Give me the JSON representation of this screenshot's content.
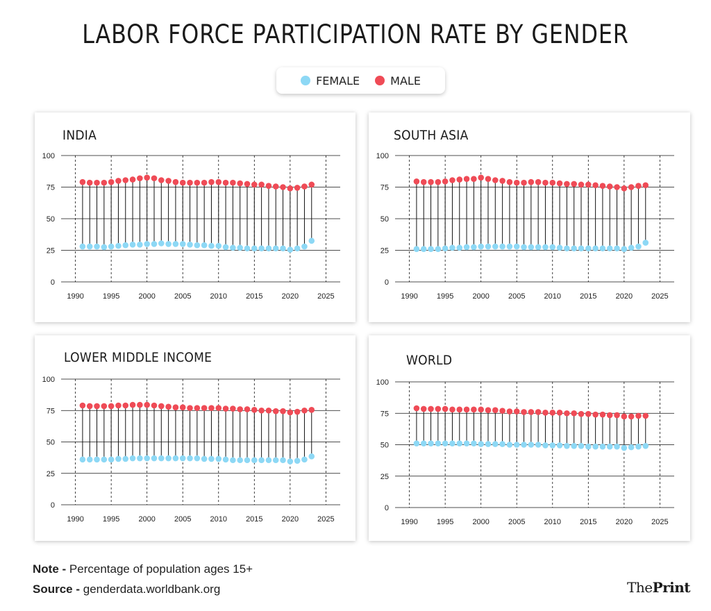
{
  "title": "LABOR FORCE PARTICIPATION RATE BY GENDER",
  "legend": {
    "female_label": "FEMALE",
    "male_label": "MALE"
  },
  "colors": {
    "female": "#8dd8f5",
    "male": "#ef4b56",
    "stem": "#111111",
    "grid": "#111111"
  },
  "footer": {
    "note_label": "Note -",
    "note_text": "Percentage of population ages 15+",
    "source_label": "Source -",
    "source_text": "genderdata.worldbank.org",
    "brand_light": "The",
    "brand_bold": "Print"
  },
  "chart_data": [
    {
      "type": "dumbbell",
      "title": "INDIA",
      "x": [
        1991,
        1992,
        1993,
        1994,
        1995,
        1996,
        1997,
        1998,
        1999,
        2000,
        2001,
        2002,
        2003,
        2004,
        2005,
        2006,
        2007,
        2008,
        2009,
        2010,
        2011,
        2012,
        2013,
        2014,
        2015,
        2016,
        2017,
        2018,
        2019,
        2020,
        2021,
        2022,
        2023
      ],
      "series": [
        {
          "name": "MALE",
          "values": [
            79,
            78.5,
            78.5,
            78.5,
            79,
            80,
            80.5,
            81,
            82,
            82.5,
            82,
            80.5,
            80,
            79,
            78.5,
            78.5,
            78.5,
            78.5,
            79,
            79,
            78.5,
            78.5,
            78,
            77.5,
            77,
            77,
            76,
            75.5,
            75,
            74,
            74.5,
            75.5,
            77
          ]
        },
        {
          "name": "FEMALE",
          "values": [
            28,
            28,
            28,
            27.5,
            28,
            28.5,
            29,
            29.5,
            29.5,
            30,
            30,
            30.5,
            30,
            30,
            30,
            29.5,
            29,
            29,
            28.5,
            28.5,
            27.5,
            27,
            27,
            26.5,
            26.5,
            26.5,
            26.5,
            26.5,
            26.5,
            25.5,
            26.5,
            28,
            32.5
          ]
        }
      ],
      "xticks": [
        1990,
        1995,
        2000,
        2005,
        2010,
        2015,
        2020,
        2025
      ],
      "yticks": [
        0,
        25,
        50,
        75,
        100
      ],
      "xlim": [
        1988,
        2027
      ],
      "ylim": [
        0,
        100
      ]
    },
    {
      "type": "dumbbell",
      "title": "SOUTH ASIA",
      "x": [
        1991,
        1992,
        1993,
        1994,
        1995,
        1996,
        1997,
        1998,
        1999,
        2000,
        2001,
        2002,
        2003,
        2004,
        2005,
        2006,
        2007,
        2008,
        2009,
        2010,
        2011,
        2012,
        2013,
        2014,
        2015,
        2016,
        2017,
        2018,
        2019,
        2020,
        2021,
        2022,
        2023
      ],
      "series": [
        {
          "name": "MALE",
          "values": [
            79.5,
            79,
            79,
            79,
            79.5,
            80.5,
            81,
            81.5,
            81.5,
            82.5,
            81.5,
            80.5,
            80,
            79,
            78.5,
            78.5,
            79,
            79,
            78.5,
            78.5,
            78,
            77.5,
            77.5,
            77,
            77,
            76.5,
            76,
            75.5,
            75,
            74,
            75,
            76,
            76.5
          ]
        },
        {
          "name": "FEMALE",
          "values": [
            26,
            26,
            26,
            26,
            26.5,
            27,
            27,
            27.5,
            27.5,
            28,
            28,
            28,
            28,
            28,
            28,
            27.5,
            27.5,
            27.5,
            27.5,
            27.5,
            27,
            26.5,
            26.5,
            26.5,
            26.5,
            26.5,
            26.5,
            26.5,
            26.5,
            26,
            27,
            28,
            31
          ]
        }
      ],
      "xticks": [
        1990,
        1995,
        2000,
        2005,
        2010,
        2015,
        2020,
        2025
      ],
      "yticks": [
        0,
        25,
        50,
        75,
        100
      ],
      "xlim": [
        1988,
        2027
      ],
      "ylim": [
        0,
        100
      ]
    },
    {
      "type": "dumbbell",
      "title": "LOWER MIDDLE INCOME",
      "x": [
        1991,
        1992,
        1993,
        1994,
        1995,
        1996,
        1997,
        1998,
        1999,
        2000,
        2001,
        2002,
        2003,
        2004,
        2005,
        2006,
        2007,
        2008,
        2009,
        2010,
        2011,
        2012,
        2013,
        2014,
        2015,
        2016,
        2017,
        2018,
        2019,
        2020,
        2021,
        2022,
        2023
      ],
      "series": [
        {
          "name": "MALE",
          "values": [
            79,
            78.5,
            78.5,
            78.5,
            78.5,
            79,
            79,
            79.5,
            79.5,
            79.5,
            79,
            78.5,
            78,
            77.5,
            77.5,
            77,
            77,
            77,
            77,
            77,
            76.5,
            76.5,
            76,
            76,
            75.5,
            75,
            75,
            74.5,
            74.5,
            73.5,
            74,
            75,
            75.5
          ]
        },
        {
          "name": "FEMALE",
          "values": [
            36,
            36,
            36,
            36,
            36,
            36.5,
            36.5,
            37,
            37,
            37,
            37,
            37,
            37,
            37,
            37,
            37,
            37,
            36.5,
            36.5,
            36.5,
            36,
            35.5,
            35.5,
            35.5,
            35.5,
            35.5,
            35.5,
            35.5,
            35.5,
            34.5,
            35,
            36,
            38.5
          ]
        }
      ],
      "xticks": [
        1990,
        1995,
        2000,
        2005,
        2010,
        2015,
        2020,
        2025
      ],
      "yticks": [
        0,
        25,
        50,
        75,
        100
      ],
      "xlim": [
        1988,
        2027
      ],
      "ylim": [
        0,
        100
      ]
    },
    {
      "type": "dumbbell",
      "title": "WORLD",
      "x": [
        1991,
        1992,
        1993,
        1994,
        1995,
        1996,
        1997,
        1998,
        1999,
        2000,
        2001,
        2002,
        2003,
        2004,
        2005,
        2006,
        2007,
        2008,
        2009,
        2010,
        2011,
        2012,
        2013,
        2014,
        2015,
        2016,
        2017,
        2018,
        2019,
        2020,
        2021,
        2022,
        2023
      ],
      "series": [
        {
          "name": "MALE",
          "values": [
            79,
            78.5,
            78.5,
            78.5,
            78.5,
            78,
            78,
            78,
            78,
            78,
            77.5,
            77.5,
            77,
            76.5,
            76.5,
            76,
            76,
            76,
            75.5,
            75.5,
            75.5,
            75,
            75,
            74.5,
            74.5,
            74,
            74,
            73.5,
            73.5,
            72.5,
            72.5,
            73,
            73
          ]
        },
        {
          "name": "FEMALE",
          "values": [
            51,
            51,
            51,
            51,
            51,
            51,
            51,
            51,
            51,
            50.5,
            50.5,
            50.5,
            50.5,
            50,
            50,
            50,
            50,
            50,
            49.5,
            49.5,
            49.5,
            49,
            49,
            49,
            48.5,
            48.5,
            48.5,
            48.5,
            48.5,
            47.5,
            48,
            48.5,
            49
          ]
        }
      ],
      "xticks": [
        1990,
        1995,
        2000,
        2005,
        2010,
        2015,
        2020,
        2025
      ],
      "yticks": [
        0,
        25,
        50,
        75,
        100
      ],
      "xlim": [
        1988,
        2027
      ],
      "ylim": [
        0,
        100
      ]
    }
  ]
}
